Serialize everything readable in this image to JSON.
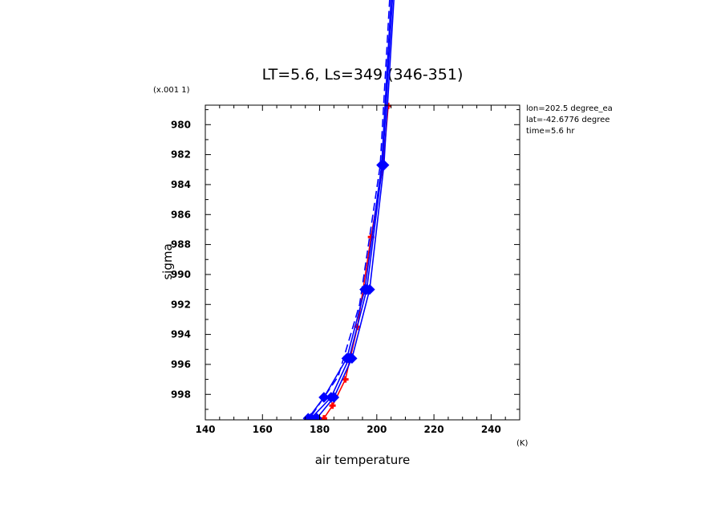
{
  "chart_data": {
    "type": "line",
    "title": "LT=5.6, Ls=349 (346-351)",
    "xlabel": "air temperature",
    "ylabel": "sigma",
    "x_unit": "(K)",
    "y_scale_note": "(x.001 1)",
    "xlim": [
      140,
      250
    ],
    "ylim": [
      999.7,
      978.7
    ],
    "xticks": [
      140,
      160,
      180,
      200,
      220,
      240
    ],
    "yticks": [
      980,
      982,
      984,
      986,
      988,
      990,
      992,
      994,
      996,
      998
    ],
    "annotations": [
      "lon=202.5 degree_ea",
      "lat=-42.6776 degree",
      "time=5.6 hr"
    ],
    "series": [
      {
        "color": "#ff0000",
        "style": "solid",
        "marker": "plus",
        "upper_clipped": false,
        "points": [
          [
            204.0,
            978.75
          ],
          [
            202.2,
            982.7
          ],
          [
            198.0,
            987.5
          ],
          [
            193.2,
            993.5
          ],
          [
            189.0,
            997.0
          ],
          [
            184.5,
            998.75
          ],
          [
            181.5,
            999.6
          ]
        ]
      },
      {
        "color": "#0000ff",
        "style": "solid",
        "marker": "diamond",
        "upper_clipped": true,
        "points": [
          [
            206.5,
            970.0
          ],
          [
            202.5,
            982.7
          ],
          [
            197.5,
            991.0
          ],
          [
            191.3,
            995.6
          ],
          [
            185.0,
            998.2
          ],
          [
            179.0,
            999.6
          ]
        ]
      },
      {
        "color": "#0000ff",
        "style": "solid",
        "marker": "diamond",
        "upper_clipped": true,
        "points": [
          [
            206.0,
            970.0
          ],
          [
            202.0,
            982.7
          ],
          [
            196.5,
            991.0
          ],
          [
            190.3,
            995.6
          ],
          [
            184.0,
            998.2
          ],
          [
            177.0,
            999.6
          ]
        ]
      },
      {
        "color": "#0000ff",
        "style": "solid",
        "marker": "diamond",
        "upper_clipped": true,
        "points": [
          [
            205.5,
            970.0
          ],
          [
            201.7,
            982.7
          ],
          [
            195.8,
            991.0
          ],
          [
            189.5,
            995.6
          ],
          [
            181.5,
            998.2
          ],
          [
            176.0,
            999.6
          ]
        ]
      },
      {
        "color": "#0000ff",
        "style": "dashed",
        "marker": "none",
        "upper_clipped": true,
        "points": [
          [
            205.0,
            970.0
          ],
          [
            201.2,
            982.7
          ],
          [
            194.0,
            992.0
          ],
          [
            186.5,
            996.8
          ],
          [
            176.5,
            999.6
          ]
        ]
      }
    ]
  }
}
